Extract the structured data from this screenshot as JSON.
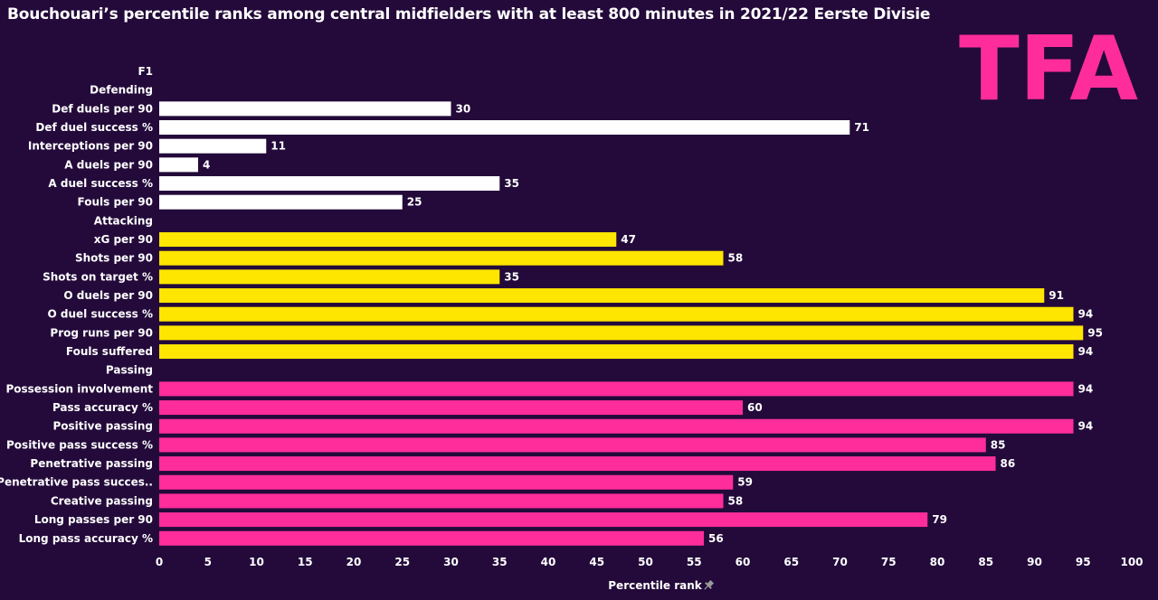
{
  "chart_data": {
    "type": "bar",
    "orientation": "horizontal",
    "title": "Bouchouari’s percentile ranks among central midfielders with at least 800 minutes in 2021/22 Eerste Divisie",
    "xlabel": "Percentile rank",
    "xlim": [
      0,
      100
    ],
    "xticks": [
      0,
      5,
      10,
      15,
      20,
      25,
      30,
      35,
      40,
      45,
      50,
      55,
      60,
      65,
      70,
      75,
      80,
      85,
      90,
      95,
      100
    ],
    "header_label": "F1",
    "grid": false,
    "rows": [
      {
        "kind": "header",
        "label": "Defending"
      },
      {
        "kind": "bar",
        "label": "Def duels per 90",
        "value": 30,
        "color": "#ffffff"
      },
      {
        "kind": "bar",
        "label": "Def duel success %",
        "value": 71,
        "color": "#ffffff"
      },
      {
        "kind": "bar",
        "label": "Interceptions per 90",
        "value": 11,
        "color": "#ffffff"
      },
      {
        "kind": "bar",
        "label": "A duels per 90",
        "value": 4,
        "color": "#ffffff"
      },
      {
        "kind": "bar",
        "label": "A duel success %",
        "value": 35,
        "color": "#ffffff"
      },
      {
        "kind": "bar",
        "label": "Fouls per 90",
        "value": 25,
        "color": "#ffffff"
      },
      {
        "kind": "header",
        "label": "Attacking"
      },
      {
        "kind": "bar",
        "label": "xG per 90",
        "value": 47,
        "color": "#ffe600"
      },
      {
        "kind": "bar",
        "label": "Shots per 90",
        "value": 58,
        "color": "#ffe600"
      },
      {
        "kind": "bar",
        "label": "Shots on target %",
        "value": 35,
        "color": "#ffe600"
      },
      {
        "kind": "bar",
        "label": "O duels per 90",
        "value": 91,
        "color": "#ffe600"
      },
      {
        "kind": "bar",
        "label": "O duel success %",
        "value": 94,
        "color": "#ffe600"
      },
      {
        "kind": "bar",
        "label": "Prog runs per 90",
        "value": 95,
        "color": "#ffe600"
      },
      {
        "kind": "bar",
        "label": "Fouls suffered",
        "value": 94,
        "color": "#ffe600"
      },
      {
        "kind": "header",
        "label": "Passing"
      },
      {
        "kind": "bar",
        "label": "Possession involvement",
        "value": 94,
        "color": "#ff2d9b"
      },
      {
        "kind": "bar",
        "label": "Pass accuracy %",
        "value": 60,
        "color": "#ff2d9b"
      },
      {
        "kind": "bar",
        "label": "Positive passing",
        "value": 94,
        "color": "#ff2d9b"
      },
      {
        "kind": "bar",
        "label": "Positive pass success %",
        "value": 85,
        "color": "#ff2d9b"
      },
      {
        "kind": "bar",
        "label": "Penetrative passing",
        "value": 86,
        "color": "#ff2d9b"
      },
      {
        "kind": "bar",
        "label": "Penetrative pass succes..",
        "value": 59,
        "color": "#ff2d9b"
      },
      {
        "kind": "bar",
        "label": "Creative passing",
        "value": 58,
        "color": "#ff2d9b"
      },
      {
        "kind": "bar",
        "label": "Long passes per 90",
        "value": 79,
        "color": "#ff2d9b"
      },
      {
        "kind": "bar",
        "label": "Long pass accuracy %",
        "value": 56,
        "color": "#ff2d9b"
      }
    ]
  },
  "logo": {
    "text": "TFA",
    "color": "#ff2d9b"
  },
  "colors": {
    "background": "#230a3a",
    "text": "#ffffff",
    "pin_icon": "#9a9a9a"
  }
}
